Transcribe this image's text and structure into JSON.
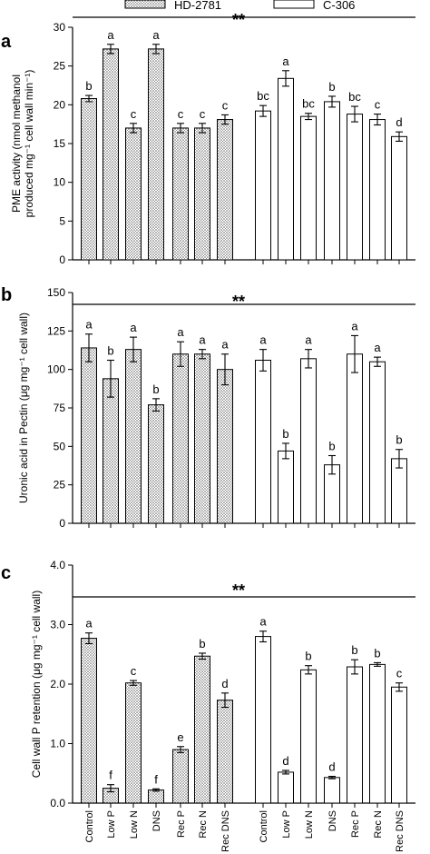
{
  "legend": [
    {
      "name": "HD-2781",
      "pattern": "dotted"
    },
    {
      "name": "C-306",
      "pattern": "open"
    }
  ],
  "categories": [
    "Control",
    "Low P",
    "Low N",
    "DNS",
    "Rec P",
    "Rec N",
    "Rec DNS"
  ],
  "colors": {
    "bar_outline": "#000000",
    "hatch_dot": "#555555",
    "open_fill": "#ffffff"
  },
  "chart_data": [
    {
      "type": "bar",
      "panel": "a",
      "significance": "**",
      "ylabel_line1": "PME activity (nmol methanol",
      "ylabel_line2": "produced mg⁻¹ cell wall min⁻¹)",
      "ylim": [
        0,
        30
      ],
      "yticks": [
        "0",
        "5",
        "10",
        "15",
        "20",
        "25",
        "30"
      ],
      "tick_values": [
        0,
        5,
        10,
        15,
        20,
        25,
        30
      ],
      "series": [
        {
          "name": "HD-2781",
          "values": [
            20.8,
            27.2,
            17.0,
            27.2,
            17.0,
            17.0,
            18.1
          ],
          "errors": [
            0.4,
            0.6,
            0.6,
            0.6,
            0.6,
            0.6,
            0.6
          ],
          "letters": [
            "b",
            "a",
            "c",
            "a",
            "c",
            "c",
            "c"
          ]
        },
        {
          "name": "C-306",
          "values": [
            19.2,
            23.4,
            18.5,
            20.4,
            18.8,
            18.1,
            15.9
          ],
          "errors": [
            0.7,
            1.0,
            0.4,
            0.7,
            1.0,
            0.7,
            0.6
          ],
          "letters": [
            "bc",
            "a",
            "bc",
            "b",
            "bc",
            "c",
            "d"
          ]
        }
      ]
    },
    {
      "type": "bar",
      "panel": "b",
      "significance": "**",
      "ylabel_line1": "Uronic acid in Pectin (μg mg⁻¹ cell wall)",
      "ylabel_line2": "",
      "ylim": [
        0,
        150
      ],
      "yticks": [
        "0",
        "25",
        "50",
        "75",
        "100",
        "125",
        "150"
      ],
      "tick_values": [
        0,
        25,
        50,
        75,
        100,
        125,
        150
      ],
      "series": [
        {
          "name": "HD-2781",
          "values": [
            114,
            94,
            113,
            77,
            110,
            110,
            100
          ],
          "errors": [
            9,
            12,
            8,
            4,
            8,
            3,
            10
          ],
          "letters": [
            "a",
            "b",
            "a",
            "b",
            "a",
            "a",
            "a"
          ]
        },
        {
          "name": "C-306",
          "values": [
            106,
            47,
            107,
            38,
            110,
            105,
            42
          ],
          "errors": [
            7,
            5,
            6,
            6,
            12,
            3,
            6
          ],
          "letters": [
            "a",
            "b",
            "a",
            "b",
            "a",
            "a",
            "b"
          ]
        }
      ]
    },
    {
      "type": "bar",
      "panel": "c",
      "significance": "**",
      "ylabel_line1": "Cell wall P retention (μg mg⁻¹ cell wall)",
      "ylabel_line2": "",
      "ylim": [
        0,
        4
      ],
      "yticks": [
        "0.0",
        "1.0",
        "2.0",
        "3.0",
        "4.0"
      ],
      "tick_values": [
        0,
        1,
        2,
        3,
        4
      ],
      "series": [
        {
          "name": "HD-2781",
          "values": [
            2.77,
            0.25,
            2.02,
            0.22,
            0.9,
            2.47,
            1.73
          ],
          "errors": [
            0.09,
            0.06,
            0.04,
            0.02,
            0.05,
            0.05,
            0.12
          ],
          "letters": [
            "a",
            "f",
            "c",
            "f",
            "e",
            "b",
            "d"
          ]
        },
        {
          "name": "C-306",
          "values": [
            2.8,
            0.52,
            2.24,
            0.43,
            2.29,
            2.33,
            1.95
          ],
          "errors": [
            0.09,
            0.03,
            0.07,
            0.02,
            0.12,
            0.03,
            0.07
          ],
          "letters": [
            "a",
            "d",
            "b",
            "d",
            "b",
            "b",
            "c"
          ]
        }
      ]
    }
  ]
}
